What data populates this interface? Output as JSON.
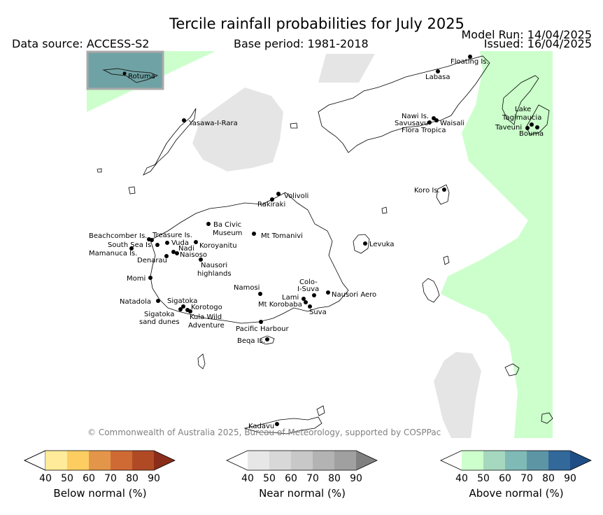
{
  "header": {
    "title": "Tercile rainfall probabilities for July 2025",
    "data_source": "Data source: ACCESS-S2",
    "base_period": "Base period: 1981-2018",
    "model_run": "Model Run: 14/04/2025",
    "issued": "Issued: 16/04/2025"
  },
  "inset": {
    "label": "Rotuma"
  },
  "places": [
    "Floating Is.",
    "Labasa",
    "Yasawa-I-Rara",
    "Nawi Is.",
    "Savusavu",
    "Waisali",
    "Flora Tropica",
    "Lake",
    "Tagimaucia",
    "Taveuni",
    "Bouma",
    "Koro Is.",
    "Volivoli",
    "Rakiraki",
    "Ba Civic",
    "Museum",
    "Mt Tomanivi",
    "Beachcomber Is.",
    "Treasure Is.",
    "South Sea Is.",
    "Vuda",
    "Koroyanitu",
    "Nadi",
    "Mamanuca Is.",
    "Naisoso",
    "Denarau",
    "Nausori",
    "highlands",
    "Levuka",
    "Momi",
    "Namosi",
    "Colo-",
    "I-Suva",
    "Nausori Aero",
    "Natadola",
    "Sigatoka",
    "Korotogo",
    "Lami",
    "Mt Korobaba",
    "Suva",
    "Sigatoka",
    "sand dunes",
    "Kula Wild",
    "Adventure",
    "Pacific Harbour",
    "Beqa Is.",
    "Kadavu"
  ],
  "copyright": "© Commonwealth of Australia 2025, Bureau of Meteorology, supported by COSPPac",
  "legends": [
    {
      "title": "Below normal (%)",
      "ticks": [
        "40",
        "50",
        "60",
        "70",
        "80",
        "90"
      ],
      "colors": [
        "#ffffff",
        "#ffeb99",
        "#fdcd61",
        "#e3964a",
        "#cf6a35",
        "#b04a25",
        "#8a2d1a"
      ]
    },
    {
      "title": "Near normal (%)",
      "ticks": [
        "40",
        "50",
        "60",
        "70",
        "80",
        "90"
      ],
      "colors": [
        "#ffffff",
        "#e7e7e7",
        "#d8d8d8",
        "#c8c8c8",
        "#b3b3b3",
        "#a0a0a0",
        "#808080"
      ]
    },
    {
      "title": "Above normal (%)",
      "ticks": [
        "40",
        "50",
        "60",
        "70",
        "80",
        "90"
      ],
      "colors": [
        "#ffffff",
        "#ccffcc",
        "#a6d8bf",
        "#80bab7",
        "#5d95a5",
        "#32689a",
        "#1e4e85"
      ]
    }
  ],
  "colors": {
    "above_40_50": "#ccffcc",
    "near_40_50": "#e5e5e5",
    "inset_sea": "#6fa2a4"
  }
}
